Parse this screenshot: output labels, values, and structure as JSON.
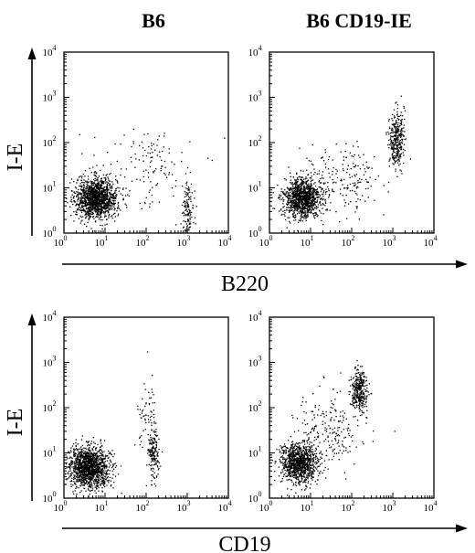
{
  "figure": {
    "column_titles": [
      "B6",
      "B6 CD19-IE"
    ],
    "y_axis_label": "I-E",
    "x_axis_labels": [
      "B220",
      "CD19"
    ],
    "tick_base": "10",
    "tick_exponents": [
      "0",
      "1",
      "2",
      "3",
      "4"
    ]
  },
  "chart_data": [
    {
      "type": "scatter",
      "title": "B6",
      "xlabel": "B220",
      "ylabel": "I-E",
      "x_scale": "log",
      "y_scale": "log",
      "xlim": [
        1,
        10000
      ],
      "ylim": [
        1,
        10000
      ],
      "point_color": "#000000",
      "populations": [
        {
          "name": "",
          "n": 1400,
          "x_center": 6,
          "y_center": 6,
          "x_spread_decades": 0.25,
          "y_spread_decades": 0.22
        },
        {
          "name": "",
          "n": 140,
          "x_center": 1000,
          "y_center": 3,
          "x_spread_decades": 0.07,
          "y_spread_decades": 0.32
        },
        {
          "name": "",
          "n": 130,
          "x_center": 100,
          "y_center": 30,
          "x_spread_decades": 0.6,
          "y_spread_decades": 0.45
        }
      ]
    },
    {
      "type": "scatter",
      "title": "B6 CD19-IE",
      "xlabel": "B220",
      "ylabel": "I-E",
      "x_scale": "log",
      "y_scale": "log",
      "xlim": [
        1,
        10000
      ],
      "ylim": [
        1,
        10000
      ],
      "point_color": "#000000",
      "populations": [
        {
          "name": "",
          "n": 1100,
          "x_center": 6,
          "y_center": 6,
          "x_spread_decades": 0.22,
          "y_spread_decades": 0.22
        },
        {
          "name": "",
          "n": 330,
          "x_center": 1200,
          "y_center": 120,
          "x_spread_decades": 0.09,
          "y_spread_decades": 0.32
        },
        {
          "name": "",
          "n": 220,
          "x_center": 50,
          "y_center": 15,
          "x_spread_decades": 0.5,
          "y_spread_decades": 0.35
        }
      ]
    },
    {
      "type": "scatter",
      "title": "B6",
      "xlabel": "CD19",
      "ylabel": "I-E",
      "x_scale": "log",
      "y_scale": "log",
      "xlim": [
        1,
        10000
      ],
      "ylim": [
        1,
        10000
      ],
      "point_color": "#000000",
      "populations": [
        {
          "name": "",
          "n": 1400,
          "x_center": 4,
          "y_center": 5,
          "x_spread_decades": 0.25,
          "y_spread_decades": 0.22
        },
        {
          "name": "",
          "n": 170,
          "x_center": 150,
          "y_center": 10,
          "x_spread_decades": 0.07,
          "y_spread_decades": 0.3
        },
        {
          "name": "",
          "n": 60,
          "x_center": 100,
          "y_center": 80,
          "x_spread_decades": 0.12,
          "y_spread_decades": 0.45
        }
      ]
    },
    {
      "type": "scatter",
      "title": "B6 CD19-IE",
      "xlabel": "CD19",
      "ylabel": "I-E",
      "x_scale": "log",
      "y_scale": "log",
      "xlim": [
        1,
        10000
      ],
      "ylim": [
        1,
        10000
      ],
      "point_color": "#000000",
      "populations": [
        {
          "name": "",
          "n": 1000,
          "x_center": 5,
          "y_center": 6,
          "x_spread_decades": 0.22,
          "y_spread_decades": 0.22
        },
        {
          "name": "",
          "n": 320,
          "x_center": 150,
          "y_center": 250,
          "x_spread_decades": 0.1,
          "y_spread_decades": 0.22
        },
        {
          "name": "",
          "n": 220,
          "x_center": 25,
          "y_center": 30,
          "x_spread_decades": 0.45,
          "y_spread_decades": 0.4
        }
      ]
    }
  ]
}
